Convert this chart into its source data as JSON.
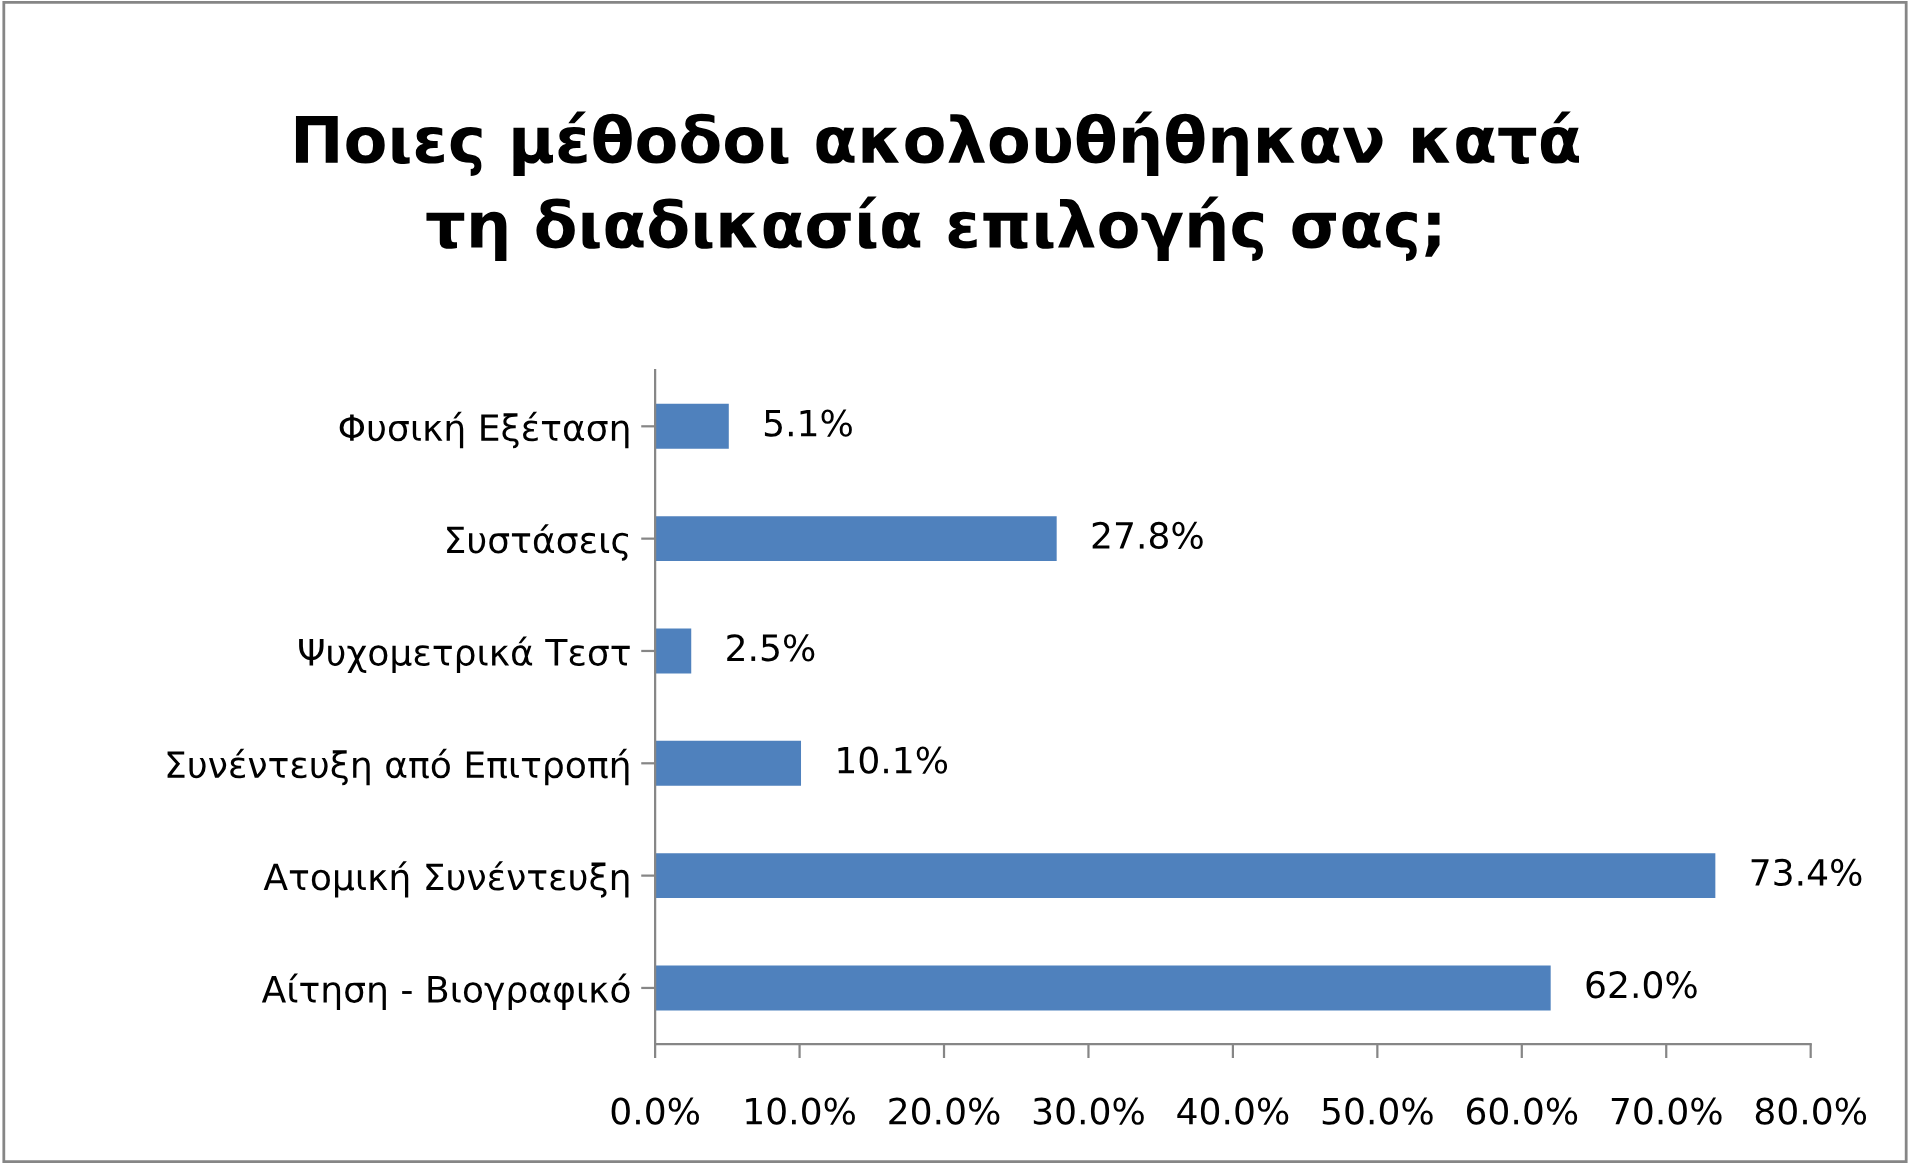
{
  "chart_data": {
    "type": "bar",
    "orientation": "horizontal",
    "title": "Ποιες μέθοδοι ακολουθήθηκαν κατά\nτη διαδικασία επιλογής σας;",
    "categories": [
      "Φυσική Εξέταση",
      "Συστάσεις",
      "Ψυχομετρικά Τεστ",
      "Συνέντευξη από Επιτροπή",
      "Ατομική Συνέντευξη",
      "Αίτηση - Βιογραφικό"
    ],
    "values": [
      5.1,
      27.8,
      2.5,
      10.1,
      73.4,
      62.0
    ],
    "value_labels": [
      "5.1%",
      "27.8%",
      "2.5%",
      "10.1%",
      "73.4%",
      "62.0%"
    ],
    "color": "#4f81bd",
    "xlim": [
      0,
      80
    ],
    "xticks": [
      {
        "value": 0,
        "label": "0.0%"
      },
      {
        "value": 10,
        "label": "10.0%"
      },
      {
        "value": 20,
        "label": "20.0%"
      },
      {
        "value": 30,
        "label": "30.0%"
      },
      {
        "value": 40,
        "label": "40.0%"
      },
      {
        "value": 50,
        "label": "50.0%"
      },
      {
        "value": 60,
        "label": "60.0%"
      },
      {
        "value": 70,
        "label": "70.0%"
      },
      {
        "value": 80,
        "label": "80.0%"
      }
    ],
    "grid": false,
    "legend": false
  }
}
